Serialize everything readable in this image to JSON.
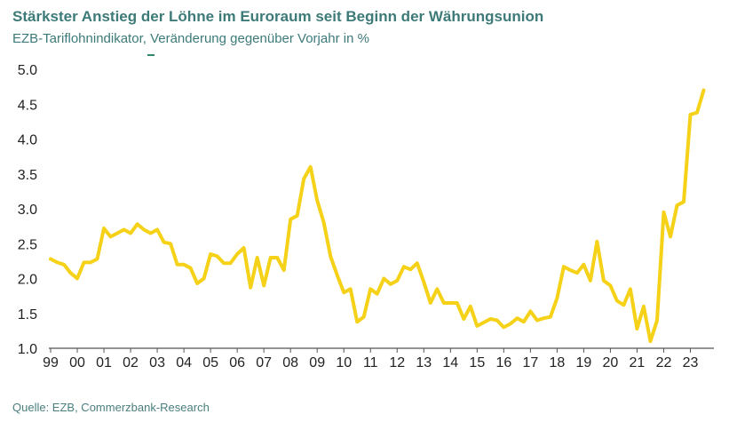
{
  "header": {
    "title": "Stärkster Anstieg der Löhne im Euroraum seit Beginn der Währungsunion",
    "subtitle": "EZB-Tariflohnindikator, Veränderung gegenüber Vorjahr in %"
  },
  "footer": {
    "source": "Quelle: EZB, Commerzbank-Research"
  },
  "colors": {
    "line": "#f5d117",
    "title": "#3d7a78",
    "axis": "#555555"
  },
  "chart_data": {
    "type": "line",
    "title": "Stärkster Anstieg der Löhne im Euroraum seit Beginn der Währungsunion",
    "subtitle": "EZB-Tariflohnindikator, Veränderung gegenüber Vorjahr in %",
    "xlabel": "",
    "ylabel": "",
    "ylim": [
      1.0,
      5.0
    ],
    "xlim": [
      1999.0,
      2023.75
    ],
    "grid": false,
    "x_ticks": [
      {
        "value": 1999,
        "label": "99"
      },
      {
        "value": 2000,
        "label": "00"
      },
      {
        "value": 2001,
        "label": "01"
      },
      {
        "value": 2002,
        "label": "02"
      },
      {
        "value": 2003,
        "label": "03"
      },
      {
        "value": 2004,
        "label": "04"
      },
      {
        "value": 2005,
        "label": "05"
      },
      {
        "value": 2006,
        "label": "06"
      },
      {
        "value": 2007,
        "label": "07"
      },
      {
        "value": 2008,
        "label": "08"
      },
      {
        "value": 2009,
        "label": "09"
      },
      {
        "value": 2010,
        "label": "10"
      },
      {
        "value": 2011,
        "label": "11"
      },
      {
        "value": 2012,
        "label": "12"
      },
      {
        "value": 2013,
        "label": "13"
      },
      {
        "value": 2014,
        "label": "14"
      },
      {
        "value": 2015,
        "label": "15"
      },
      {
        "value": 2016,
        "label": "16"
      },
      {
        "value": 2017,
        "label": "17"
      },
      {
        "value": 2018,
        "label": "18"
      },
      {
        "value": 2019,
        "label": "19"
      },
      {
        "value": 2020,
        "label": "20"
      },
      {
        "value": 2021,
        "label": "21"
      },
      {
        "value": 2022,
        "label": "22"
      },
      {
        "value": 2023,
        "label": "23"
      }
    ],
    "y_ticks": [
      {
        "value": 1.0,
        "label": "1.0"
      },
      {
        "value": 1.5,
        "label": "1.5"
      },
      {
        "value": 2.0,
        "label": "2.0"
      },
      {
        "value": 2.5,
        "label": "2.5"
      },
      {
        "value": 3.0,
        "label": "3.0"
      },
      {
        "value": 3.5,
        "label": "3.5"
      },
      {
        "value": 4.0,
        "label": "4.0"
      },
      {
        "value": 4.5,
        "label": "4.5"
      },
      {
        "value": 5.0,
        "label": "5.0"
      }
    ],
    "series": [
      {
        "x": [
          1999.0,
          1999.25,
          1999.5,
          1999.75,
          2000.0,
          2000.25,
          2000.5,
          2000.75,
          2001.0,
          2001.25,
          2001.5,
          2001.75,
          2002.0,
          2002.25,
          2002.5,
          2002.75,
          2003.0,
          2003.25,
          2003.5,
          2003.75,
          2004.0,
          2004.25,
          2004.5,
          2004.75,
          2005.0,
          2005.25,
          2005.5,
          2005.75,
          2006.0,
          2006.25,
          2006.5,
          2006.75,
          2007.0,
          2007.25,
          2007.5,
          2007.75,
          2008.0,
          2008.25,
          2008.5,
          2008.75,
          2009.0,
          2009.25,
          2009.5,
          2009.75,
          2010.0,
          2010.25,
          2010.5,
          2010.75,
          2011.0,
          2011.25,
          2011.5,
          2011.75,
          2012.0,
          2012.25,
          2012.5,
          2012.75,
          2013.0,
          2013.25,
          2013.5,
          2013.75,
          2014.0,
          2014.25,
          2014.5,
          2014.75,
          2015.0,
          2015.25,
          2015.5,
          2015.75,
          2016.0,
          2016.25,
          2016.5,
          2016.75,
          2017.0,
          2017.25,
          2017.5,
          2017.75,
          2018.0,
          2018.25,
          2018.5,
          2018.75,
          2019.0,
          2019.25,
          2019.5,
          2019.75,
          2020.0,
          2020.25,
          2020.5,
          2020.75,
          2021.0,
          2021.25,
          2021.5,
          2021.75,
          2022.0,
          2022.25,
          2022.5,
          2022.75,
          2023.0,
          2023.25,
          2023.5
        ],
        "values": [
          2.28,
          2.23,
          2.2,
          2.08,
          2.0,
          2.23,
          2.23,
          2.28,
          2.72,
          2.6,
          2.65,
          2.7,
          2.65,
          2.78,
          2.7,
          2.65,
          2.7,
          2.52,
          2.5,
          2.2,
          2.2,
          2.15,
          1.93,
          2.0,
          2.35,
          2.32,
          2.22,
          2.22,
          2.35,
          2.44,
          1.87,
          2.3,
          1.9,
          2.3,
          2.3,
          2.12,
          2.85,
          2.9,
          3.43,
          3.6,
          3.12,
          2.8,
          2.32,
          2.05,
          1.8,
          1.85,
          1.38,
          1.45,
          1.85,
          1.78,
          2.0,
          1.92,
          1.97,
          2.17,
          2.13,
          2.22,
          1.95,
          1.65,
          1.85,
          1.65,
          1.65,
          1.65,
          1.42,
          1.6,
          1.32,
          1.37,
          1.42,
          1.4,
          1.3,
          1.35,
          1.43,
          1.38,
          1.53,
          1.4,
          1.43,
          1.45,
          1.72,
          2.17,
          2.12,
          2.08,
          2.2,
          1.97,
          2.53,
          1.97,
          1.9,
          1.68,
          1.62,
          1.85,
          1.28,
          1.6,
          1.1,
          1.4,
          2.95,
          2.6,
          3.05,
          3.1,
          4.35,
          4.38,
          4.7
        ]
      }
    ]
  }
}
